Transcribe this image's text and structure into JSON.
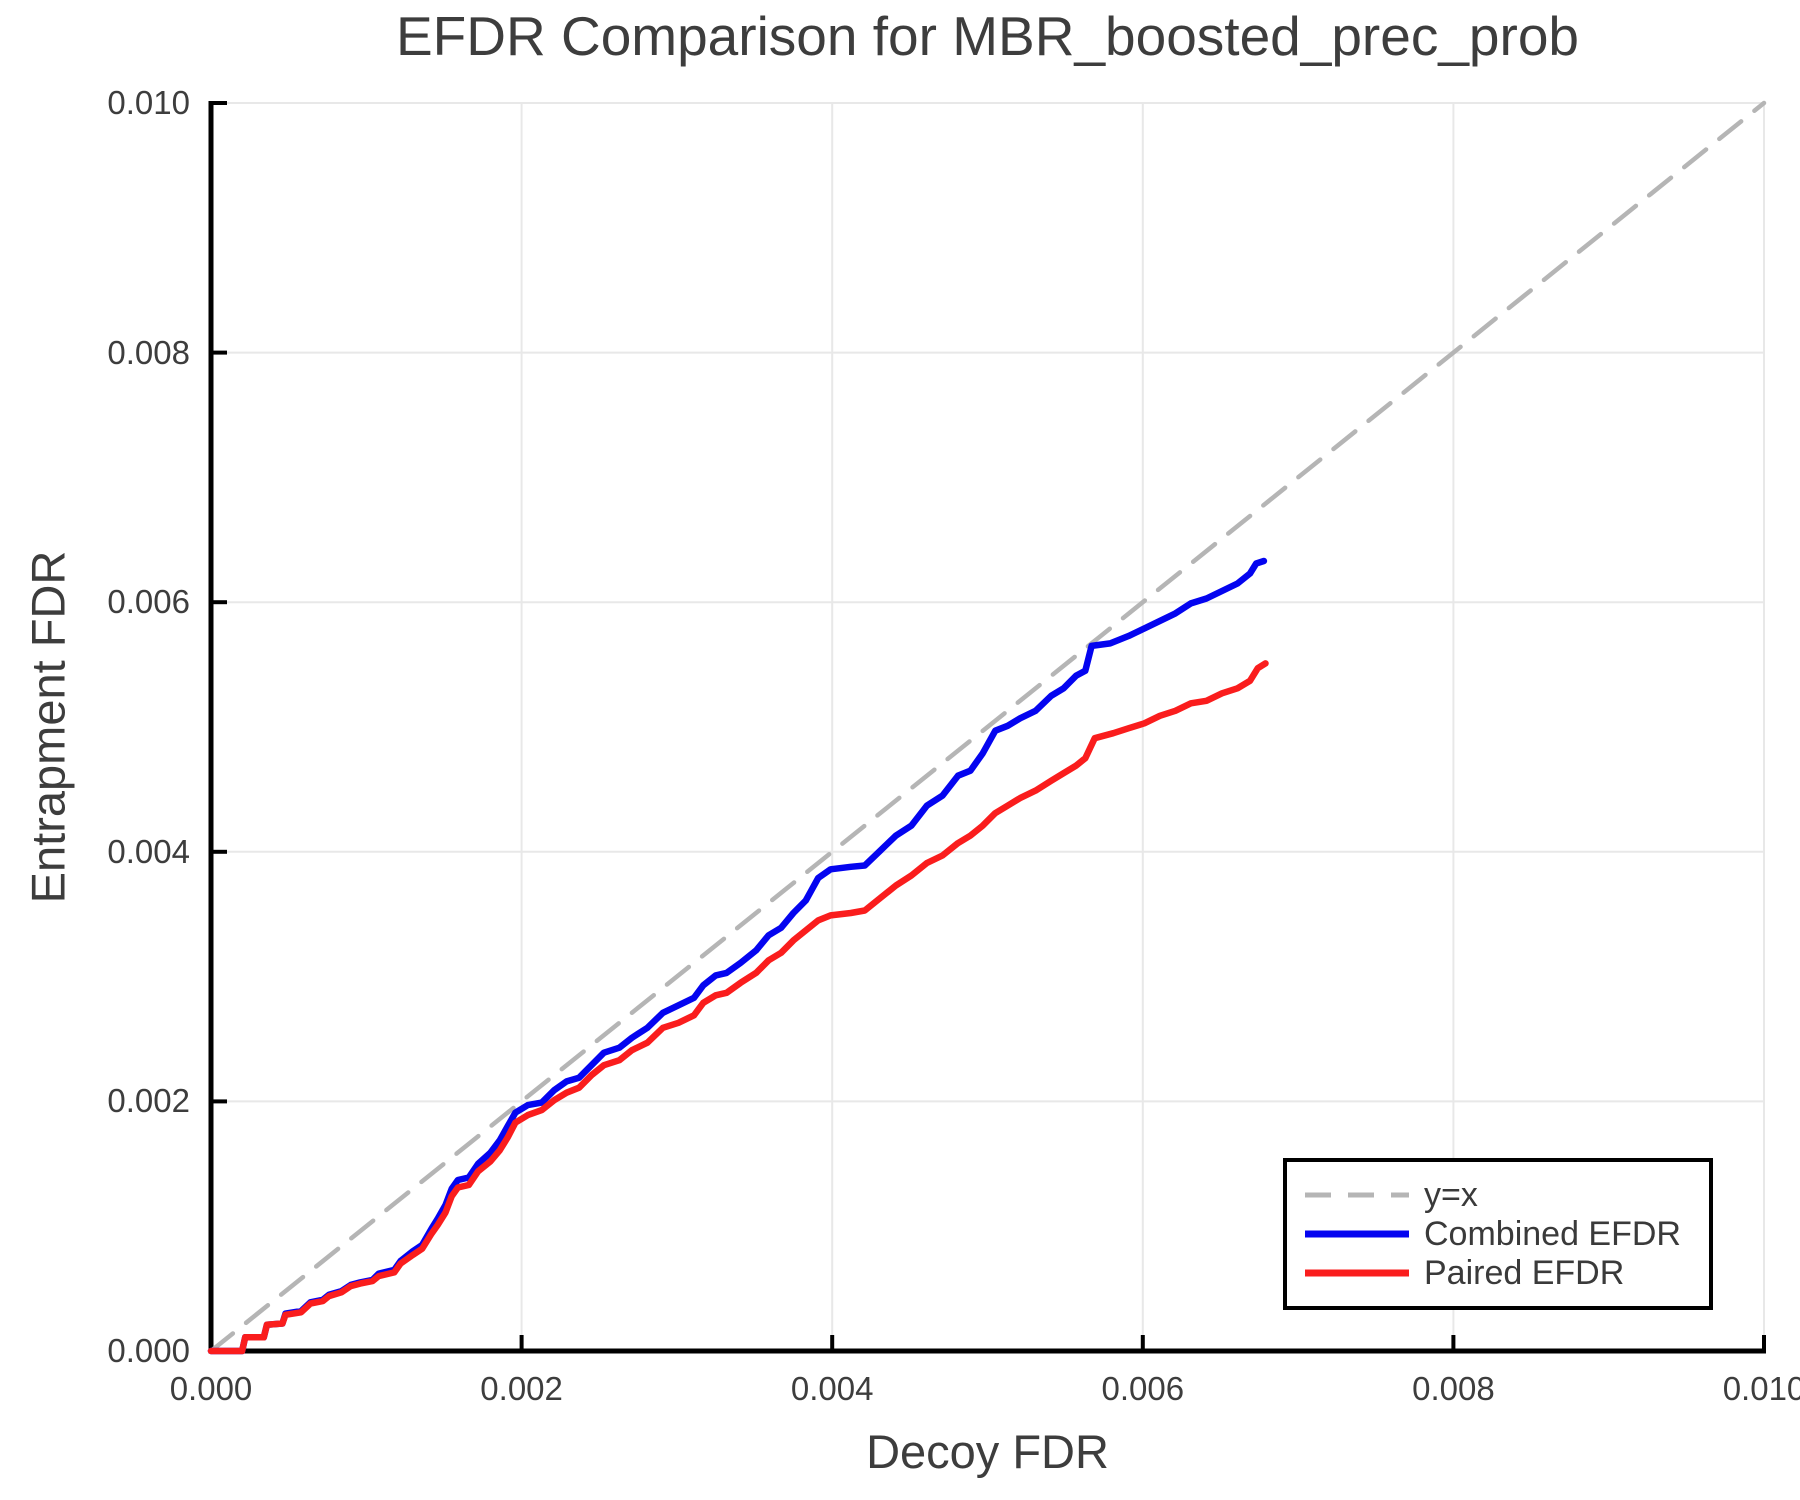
{
  "chart_data": {
    "type": "line",
    "title": "EFDR Comparison for MBR_boosted_prec_prob",
    "xlabel": "Decoy FDR",
    "ylabel": "Entrapment FDR",
    "grid": true,
    "legend_position": "lower right",
    "background_color": "#ffffff",
    "gridline_color": "#e8e8e8",
    "spine_color": "#000000",
    "text_color": "#3d3d3d",
    "x_axis": {
      "label": "Decoy FDR",
      "range": [
        0,
        0.01
      ],
      "tick_values": [
        0,
        0.002,
        0.004,
        0.006,
        0.008,
        0.01
      ],
      "tick_labels": [
        "0.000",
        "0.002",
        "0.004",
        "0.006",
        "0.008",
        "0.010"
      ]
    },
    "y_axis": {
      "label": "Entrapment FDR",
      "range": [
        0,
        0.01
      ],
      "tick_values": [
        0,
        0.002,
        0.004,
        0.006,
        0.008,
        0.01
      ],
      "tick_labels": [
        "0.000",
        "0.002",
        "0.004",
        "0.006",
        "0.008",
        "0.010"
      ]
    },
    "series": [
      {
        "name": "y=x",
        "style": "dashed",
        "color": "#b5b5b5",
        "width": 4.5,
        "points": [
          [
            0,
            0
          ],
          [
            0.01,
            0.01
          ]
        ]
      },
      {
        "name": "Combined EFDR",
        "style": "solid",
        "color": "#0404f0",
        "width": 6.5,
        "points": [
          [
            0.0,
            0.0
          ],
          [
            0.0002,
            0.0
          ],
          [
            0.00022,
            0.00011
          ],
          [
            0.00034,
            0.00011
          ],
          [
            0.00036,
            0.00021
          ],
          [
            0.00046,
            0.00022
          ],
          [
            0.00048,
            0.0003
          ],
          [
            0.00058,
            0.00032
          ],
          [
            0.00064,
            0.00039
          ],
          [
            0.00072,
            0.00041
          ],
          [
            0.00076,
            0.00045
          ],
          [
            0.00084,
            0.00048
          ],
          [
            0.0009,
            0.00053
          ],
          [
            0.00096,
            0.00055
          ],
          [
            0.00104,
            0.00057
          ],
          [
            0.00108,
            0.00062
          ],
          [
            0.00118,
            0.00065
          ],
          [
            0.00122,
            0.00072
          ],
          [
            0.0013,
            0.0008
          ],
          [
            0.00136,
            0.00085
          ],
          [
            0.00142,
            0.00098
          ],
          [
            0.00146,
            0.00106
          ],
          [
            0.00151,
            0.00117
          ],
          [
            0.00155,
            0.0013
          ],
          [
            0.00159,
            0.00137
          ],
          [
            0.00166,
            0.00139
          ],
          [
            0.00172,
            0.0015
          ],
          [
            0.0018,
            0.00159
          ],
          [
            0.00186,
            0.00169
          ],
          [
            0.00191,
            0.0018
          ],
          [
            0.00196,
            0.00191
          ],
          [
            0.00204,
            0.00197
          ],
          [
            0.00213,
            0.00199
          ],
          [
            0.00221,
            0.00209
          ],
          [
            0.00229,
            0.00216
          ],
          [
            0.00237,
            0.00219
          ],
          [
            0.00245,
            0.00229
          ],
          [
            0.00253,
            0.00239
          ],
          [
            0.00263,
            0.00243
          ],
          [
            0.00271,
            0.00251
          ],
          [
            0.00281,
            0.00259
          ],
          [
            0.00291,
            0.00271
          ],
          [
            0.00301,
            0.00277
          ],
          [
            0.00311,
            0.00283
          ],
          [
            0.00317,
            0.00293
          ],
          [
            0.00325,
            0.00301
          ],
          [
            0.00332,
            0.00303
          ],
          [
            0.00341,
            0.00311
          ],
          [
            0.00351,
            0.00321
          ],
          [
            0.00359,
            0.00333
          ],
          [
            0.00367,
            0.00339
          ],
          [
            0.00375,
            0.00351
          ],
          [
            0.00383,
            0.00361
          ],
          [
            0.00391,
            0.00379
          ],
          [
            0.00399,
            0.00386
          ],
          [
            0.00412,
            0.00388
          ],
          [
            0.00421,
            0.00389
          ],
          [
            0.00431,
            0.00401
          ],
          [
            0.00441,
            0.00413
          ],
          [
            0.00451,
            0.00421
          ],
          [
            0.00461,
            0.00437
          ],
          [
            0.00471,
            0.00445
          ],
          [
            0.00481,
            0.00461
          ],
          [
            0.00489,
            0.00465
          ],
          [
            0.00497,
            0.00479
          ],
          [
            0.00505,
            0.00497
          ],
          [
            0.00513,
            0.00501
          ],
          [
            0.00521,
            0.00507
          ],
          [
            0.00531,
            0.00513
          ],
          [
            0.00541,
            0.00525
          ],
          [
            0.00549,
            0.00531
          ],
          [
            0.00557,
            0.00541
          ],
          [
            0.00563,
            0.00545
          ],
          [
            0.00567,
            0.00565
          ],
          [
            0.00579,
            0.00567
          ],
          [
            0.00591,
            0.00573
          ],
          [
            0.00601,
            0.00579
          ],
          [
            0.00611,
            0.00585
          ],
          [
            0.00621,
            0.00591
          ],
          [
            0.00631,
            0.00599
          ],
          [
            0.00641,
            0.00603
          ],
          [
            0.00651,
            0.00609
          ],
          [
            0.00661,
            0.00615
          ],
          [
            0.00669,
            0.00623
          ],
          [
            0.00673,
            0.00631
          ],
          [
            0.00678,
            0.00633
          ]
        ]
      },
      {
        "name": "Paired EFDR",
        "style": "solid",
        "color": "#fa1d1d",
        "width": 6.5,
        "points": [
          [
            0.0,
            0.0
          ],
          [
            0.0002,
            0.0
          ],
          [
            0.00022,
            0.00011
          ],
          [
            0.00034,
            0.00011
          ],
          [
            0.00036,
            0.00021
          ],
          [
            0.00046,
            0.00022
          ],
          [
            0.00048,
            0.00029
          ],
          [
            0.00058,
            0.00031
          ],
          [
            0.00064,
            0.00038
          ],
          [
            0.00072,
            0.0004
          ],
          [
            0.00076,
            0.00044
          ],
          [
            0.00084,
            0.00047
          ],
          [
            0.0009,
            0.00052
          ],
          [
            0.00096,
            0.00054
          ],
          [
            0.00104,
            0.00056
          ],
          [
            0.00108,
            0.0006
          ],
          [
            0.00118,
            0.00063
          ],
          [
            0.00122,
            0.0007
          ],
          [
            0.0013,
            0.00077
          ],
          [
            0.00136,
            0.00082
          ],
          [
            0.00142,
            0.00094
          ],
          [
            0.00146,
            0.00101
          ],
          [
            0.00151,
            0.00111
          ],
          [
            0.00155,
            0.00124
          ],
          [
            0.00159,
            0.00131
          ],
          [
            0.00166,
            0.00133
          ],
          [
            0.00172,
            0.00144
          ],
          [
            0.0018,
            0.00152
          ],
          [
            0.00186,
            0.00161
          ],
          [
            0.00191,
            0.00171
          ],
          [
            0.00196,
            0.00183
          ],
          [
            0.00204,
            0.00189
          ],
          [
            0.00213,
            0.00193
          ],
          [
            0.00221,
            0.00201
          ],
          [
            0.00229,
            0.00207
          ],
          [
            0.00237,
            0.00211
          ],
          [
            0.00245,
            0.00221
          ],
          [
            0.00253,
            0.00229
          ],
          [
            0.00263,
            0.00233
          ],
          [
            0.00271,
            0.00241
          ],
          [
            0.00281,
            0.00247
          ],
          [
            0.00291,
            0.00259
          ],
          [
            0.00301,
            0.00263
          ],
          [
            0.00311,
            0.00269
          ],
          [
            0.00317,
            0.00279
          ],
          [
            0.00325,
            0.00285
          ],
          [
            0.00332,
            0.00287
          ],
          [
            0.00341,
            0.00295
          ],
          [
            0.00351,
            0.00303
          ],
          [
            0.00359,
            0.00313
          ],
          [
            0.00367,
            0.00319
          ],
          [
            0.00375,
            0.00329
          ],
          [
            0.00383,
            0.00337
          ],
          [
            0.00391,
            0.00345
          ],
          [
            0.00399,
            0.00349
          ],
          [
            0.00412,
            0.00351
          ],
          [
            0.00421,
            0.00353
          ],
          [
            0.00431,
            0.00363
          ],
          [
            0.00441,
            0.00373
          ],
          [
            0.00451,
            0.00381
          ],
          [
            0.00461,
            0.00391
          ],
          [
            0.00471,
            0.00397
          ],
          [
            0.00481,
            0.00407
          ],
          [
            0.00489,
            0.00413
          ],
          [
            0.00497,
            0.00421
          ],
          [
            0.00505,
            0.00431
          ],
          [
            0.00513,
            0.00437
          ],
          [
            0.00521,
            0.00443
          ],
          [
            0.00531,
            0.00449
          ],
          [
            0.00541,
            0.00457
          ],
          [
            0.00549,
            0.00463
          ],
          [
            0.00557,
            0.00469
          ],
          [
            0.00563,
            0.00475
          ],
          [
            0.00569,
            0.00491
          ],
          [
            0.00581,
            0.00495
          ],
          [
            0.00591,
            0.00499
          ],
          [
            0.00601,
            0.00503
          ],
          [
            0.00611,
            0.00509
          ],
          [
            0.00621,
            0.00513
          ],
          [
            0.00631,
            0.00519
          ],
          [
            0.00641,
            0.00521
          ],
          [
            0.00651,
            0.00527
          ],
          [
            0.00661,
            0.00531
          ],
          [
            0.00669,
            0.00537
          ],
          [
            0.00674,
            0.00547
          ],
          [
            0.00679,
            0.00551
          ]
        ]
      }
    ]
  }
}
